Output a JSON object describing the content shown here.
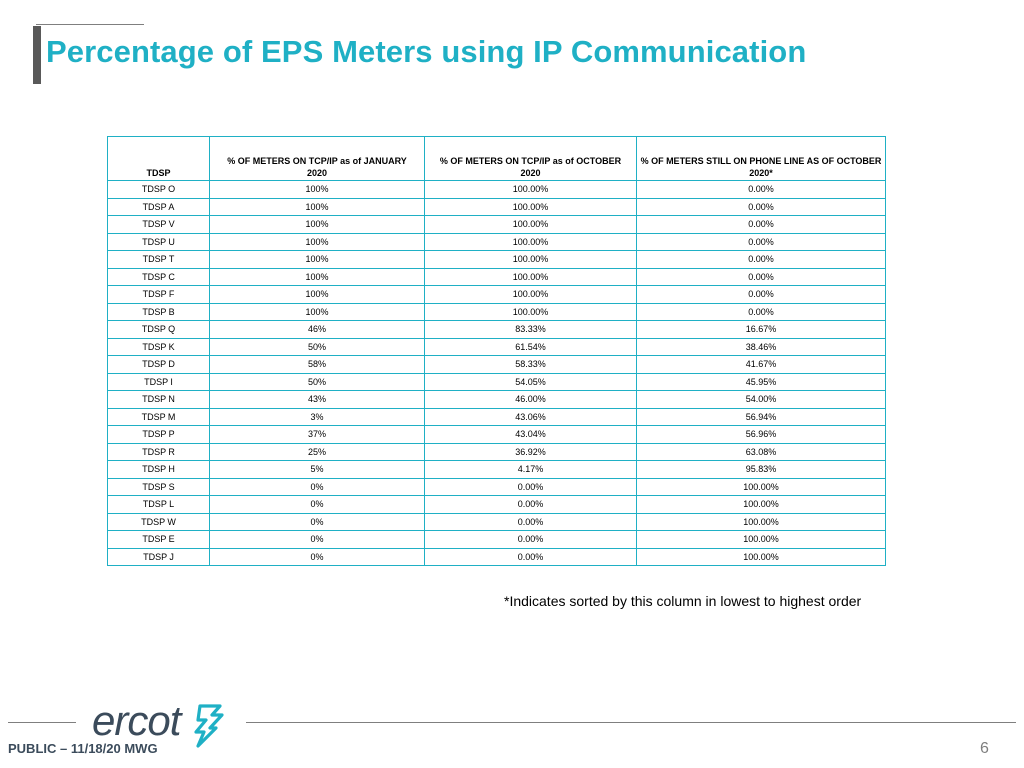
{
  "slide": {
    "title": "Percentage of EPS Meters using IP Communication",
    "footnote": "*Indicates sorted by this column in lowest to highest order",
    "footer_label": "PUBLIC – 11/18/20 MWG",
    "page_number": "6",
    "logo_text": "ercot",
    "accent_color": "#1fb0c5"
  },
  "table": {
    "headers": [
      [
        "",
        "TDSP"
      ],
      [
        "% OF METERS ON TCP/IP as of JANUARY",
        "2020"
      ],
      [
        "% OF METERS ON TCP/IP as of OCTOBER",
        "2020"
      ],
      [
        "% OF METERS STILL ON PHONE LINE AS OF OCTOBER",
        "2020*"
      ]
    ],
    "rows": [
      [
        "TDSP O",
        "100%",
        "100.00%",
        "0.00%"
      ],
      [
        "TDSP A",
        "100%",
        "100.00%",
        "0.00%"
      ],
      [
        "TDSP V",
        "100%",
        "100.00%",
        "0.00%"
      ],
      [
        "TDSP U",
        "100%",
        "100.00%",
        "0.00%"
      ],
      [
        "TDSP T",
        "100%",
        "100.00%",
        "0.00%"
      ],
      [
        "TDSP C",
        "100%",
        "100.00%",
        "0.00%"
      ],
      [
        "TDSP F",
        "100%",
        "100.00%",
        "0.00%"
      ],
      [
        "TDSP B",
        "100%",
        "100.00%",
        "0.00%"
      ],
      [
        "TDSP Q",
        "46%",
        "83.33%",
        "16.67%"
      ],
      [
        "TDSP K",
        "50%",
        "61.54%",
        "38.46%"
      ],
      [
        "TDSP D",
        "58%",
        "58.33%",
        "41.67%"
      ],
      [
        "TDSP I",
        "50%",
        "54.05%",
        "45.95%"
      ],
      [
        "TDSP N",
        "43%",
        "46.00%",
        "54.00%"
      ],
      [
        "TDSP M",
        "3%",
        "43.06%",
        "56.94%"
      ],
      [
        "TDSP P",
        "37%",
        "43.04%",
        "56.96%"
      ],
      [
        "TDSP R",
        "25%",
        "36.92%",
        "63.08%"
      ],
      [
        "TDSP H",
        "5%",
        "4.17%",
        "95.83%"
      ],
      [
        "TDSP S",
        "0%",
        "0.00%",
        "100.00%"
      ],
      [
        "TDSP L",
        "0%",
        "0.00%",
        "100.00%"
      ],
      [
        "TDSP W",
        "0%",
        "0.00%",
        "100.00%"
      ],
      [
        "TDSP E",
        "0%",
        "0.00%",
        "100.00%"
      ],
      [
        "TDSP J",
        "0%",
        "0.00%",
        "100.00%"
      ]
    ]
  }
}
